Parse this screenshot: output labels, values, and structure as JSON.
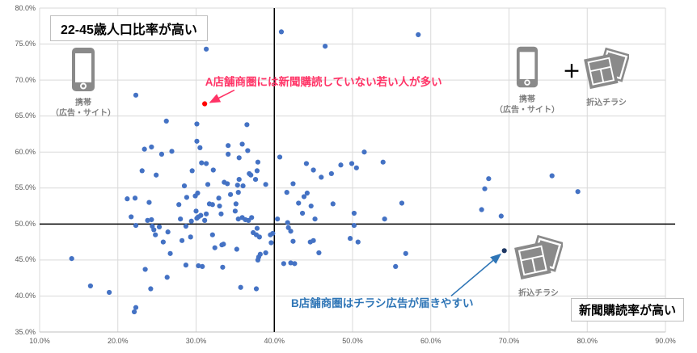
{
  "chart_data": {
    "type": "scatter",
    "title": "",
    "xlabel": "新聞購読率",
    "ylabel": "22-45歳人口比率",
    "x_axis": {
      "min": 10,
      "max": 90,
      "tick_values": [
        10,
        20,
        30,
        40,
        50,
        60,
        70,
        80,
        90
      ],
      "tick_labels": [
        "10.0%",
        "20.0%",
        "30.0%",
        "40.0%",
        "50.0%",
        "60.0%",
        "70.0%",
        "80.0%",
        "90.0%"
      ],
      "grid": true
    },
    "y_axis": {
      "min": 35,
      "max": 80,
      "tick_values": [
        35,
        40,
        45,
        50,
        55,
        60,
        65,
        70,
        75,
        80
      ],
      "tick_labels": [
        "35.0%",
        "40.0%",
        "45.0%",
        "50.0%",
        "55.0%",
        "60.0%",
        "65.0%",
        "70.0%",
        "75.0%",
        "80.0%"
      ],
      "grid": true
    },
    "reference_lines": {
      "vertical_at_x": 40,
      "horizontal_at_y": 50,
      "color": "#000000"
    },
    "series": [
      {
        "name": "店舗商圏",
        "color": "#4472C4",
        "points": [
          [
            40.9,
            76.7
          ],
          [
            58.4,
            76.3
          ],
          [
            31.3,
            74.3
          ],
          [
            46.5,
            74.7
          ],
          [
            22.3,
            67.9
          ],
          [
            26.2,
            64.3
          ],
          [
            30.1,
            63.9
          ],
          [
            36.5,
            63.8
          ],
          [
            30.1,
            61.5
          ],
          [
            30.5,
            60.6
          ],
          [
            24.3,
            60.7
          ],
          [
            23.4,
            60.4
          ],
          [
            25.6,
            59.7
          ],
          [
            26.9,
            60.1
          ],
          [
            34.1,
            60.9
          ],
          [
            35.9,
            61.1
          ],
          [
            34.1,
            59.7
          ],
          [
            35.5,
            59.2
          ],
          [
            36.6,
            60.2
          ],
          [
            37.9,
            58.6
          ],
          [
            40.7,
            59.3
          ],
          [
            30.7,
            58.5
          ],
          [
            31.3,
            58.4
          ],
          [
            32.2,
            57.5
          ],
          [
            29.5,
            57.4
          ],
          [
            23.1,
            57.4
          ],
          [
            24.9,
            56.8
          ],
          [
            33.6,
            55.8
          ],
          [
            34.0,
            55.6
          ],
          [
            35.3,
            55.4
          ],
          [
            35.5,
            56.2
          ],
          [
            36.0,
            55.3
          ],
          [
            36.8,
            57.0
          ],
          [
            37.0,
            56.8
          ],
          [
            37.8,
            57.4
          ],
          [
            37.6,
            56.2
          ],
          [
            38.9,
            55.5
          ],
          [
            28.5,
            55.3
          ],
          [
            31.5,
            55.5
          ],
          [
            44.1,
            58.4
          ],
          [
            45.0,
            57.5
          ],
          [
            46.0,
            56.5
          ],
          [
            42.4,
            55.6
          ],
          [
            41.6,
            54.4
          ],
          [
            44.2,
            54.3
          ],
          [
            30.2,
            54.3
          ],
          [
            35.4,
            54.4
          ],
          [
            51.5,
            60.0
          ],
          [
            48.5,
            58.2
          ],
          [
            49.9,
            58.4
          ],
          [
            50.5,
            57.8
          ],
          [
            53.9,
            58.6
          ],
          [
            47.3,
            57.0
          ],
          [
            67.4,
            56.3
          ],
          [
            66.9,
            54.9
          ],
          [
            75.5,
            56.7
          ],
          [
            78.8,
            54.5
          ],
          [
            21.2,
            53.5
          ],
          [
            22.2,
            53.6
          ],
          [
            24.0,
            53.0
          ],
          [
            21.7,
            51.0
          ],
          [
            22.3,
            49.8
          ],
          [
            23.8,
            50.5
          ],
          [
            24.3,
            50.6
          ],
          [
            24.4,
            49.7
          ],
          [
            24.6,
            49.2
          ],
          [
            25.3,
            49.6
          ],
          [
            24.8,
            48.5
          ],
          [
            25.8,
            47.5
          ],
          [
            26.4,
            48.9
          ],
          [
            26.7,
            45.9
          ],
          [
            27.8,
            52.7
          ],
          [
            28.0,
            50.7
          ],
          [
            28.2,
            47.7
          ],
          [
            28.7,
            49.7
          ],
          [
            28.8,
            53.7
          ],
          [
            29.3,
            48.2
          ],
          [
            29.4,
            50.4
          ],
          [
            29.9,
            53.9
          ],
          [
            30.0,
            51.8
          ],
          [
            30.1,
            50.8
          ],
          [
            30.3,
            51.0
          ],
          [
            30.6,
            51.2
          ],
          [
            31.1,
            50.5
          ],
          [
            31.3,
            51.4
          ],
          [
            31.7,
            52.8
          ],
          [
            32.1,
            52.7
          ],
          [
            32.9,
            53.6
          ],
          [
            33.0,
            52.5
          ],
          [
            33.2,
            51.4
          ],
          [
            32.1,
            48.5
          ],
          [
            32.4,
            46.7
          ],
          [
            33.3,
            47.1
          ],
          [
            33.5,
            47.2
          ],
          [
            34.4,
            54.1
          ],
          [
            35.1,
            52.8
          ],
          [
            35.0,
            51.8
          ],
          [
            35.4,
            50.7
          ],
          [
            35.9,
            50.9
          ],
          [
            35.2,
            46.5
          ],
          [
            36.3,
            50.6
          ],
          [
            36.7,
            50.5
          ],
          [
            37.1,
            50.9
          ],
          [
            37.3,
            48.8
          ],
          [
            37.7,
            48.5
          ],
          [
            37.8,
            49.4
          ],
          [
            38.1,
            48.2
          ],
          [
            38.0,
            45.4
          ],
          [
            37.9,
            45.0
          ],
          [
            38.2,
            45.8
          ],
          [
            38.9,
            46.0
          ],
          [
            39.5,
            48.5
          ],
          [
            39.6,
            47.4
          ],
          [
            39.8,
            48.7
          ],
          [
            40.4,
            50.7
          ],
          [
            41.7,
            50.2
          ],
          [
            41.8,
            49.5
          ],
          [
            42.1,
            49.0
          ],
          [
            42.4,
            47.6
          ],
          [
            43.1,
            52.9
          ],
          [
            43.6,
            51.5
          ],
          [
            43.8,
            53.8
          ],
          [
            44.7,
            52.5
          ],
          [
            44.6,
            47.5
          ],
          [
            45.0,
            47.7
          ],
          [
            45.2,
            50.7
          ],
          [
            45.7,
            46.0
          ],
          [
            41.2,
            44.5
          ],
          [
            42.1,
            44.6
          ],
          [
            42.6,
            44.5
          ],
          [
            28.7,
            44.3
          ],
          [
            30.3,
            44.2
          ],
          [
            30.8,
            44.1
          ],
          [
            33.4,
            44.0
          ],
          [
            23.5,
            43.7
          ],
          [
            47.5,
            52.8
          ],
          [
            50.2,
            51.5
          ],
          [
            56.3,
            52.9
          ],
          [
            54.1,
            50.7
          ],
          [
            50.2,
            49.8
          ],
          [
            49.7,
            48.0
          ],
          [
            50.7,
            47.5
          ],
          [
            56.8,
            45.9
          ],
          [
            55.5,
            44.1
          ],
          [
            66.5,
            52.0
          ],
          [
            69.0,
            51.1
          ],
          [
            16.5,
            41.4
          ],
          [
            18.9,
            40.5
          ],
          [
            24.2,
            41.0
          ],
          [
            26.3,
            42.6
          ],
          [
            35.7,
            41.2
          ],
          [
            37.7,
            41.0
          ],
          [
            22.3,
            38.4
          ],
          [
            22.1,
            37.8
          ],
          [
            14.1,
            45.2
          ]
        ]
      },
      {
        "name": "A店舗商圏",
        "color": "#FF0000",
        "points": [
          [
            31.1,
            66.7
          ]
        ]
      },
      {
        "name": "B店舗商圏",
        "color": "#1F3864",
        "points": [
          [
            69.4,
            46.3
          ]
        ]
      }
    ],
    "annotations": [
      {
        "id": "a",
        "text": "A店舗商圏には新聞購読していない若い人が多い",
        "color": "#FF3366",
        "text_center": {
          "x": 46.3,
          "y": 69.9
        },
        "arrow_from": {
          "x": 34.9,
          "y": 68.6
        },
        "arrow_to": {
          "x": 31.8,
          "y": 66.9
        }
      },
      {
        "id": "b",
        "text": "B店舗商圏はチラシ広告が届きやすい",
        "color": "#2E75B6",
        "text_center": {
          "x": 53.8,
          "y": 39.2
        },
        "arrow_from": {
          "x": 62.6,
          "y": 40.0
        },
        "arrow_to": {
          "x": 68.9,
          "y": 45.8
        }
      }
    ],
    "legend": {
      "visible": false
    }
  },
  "labels": {
    "quadrant_top": "22-45歳人口比率が高い",
    "quadrant_right": "新聞購読率が高い",
    "phone_label_line1": "携帯",
    "phone_label_line2": "（広告・サイト）",
    "flyer_label": "折込チラシ",
    "plus_sign": "＋"
  },
  "colors": {
    "point": "#4472C4",
    "point_a": "#FF0000",
    "point_b": "#1F3864",
    "annotation_a": "#FF3366",
    "annotation_b": "#2E75B6",
    "grid": "#D9D9D9",
    "axis_line": "#BFBFBF",
    "axis_text": "#595959",
    "icon": "#8A8A8A",
    "reference_line": "#000000"
  }
}
